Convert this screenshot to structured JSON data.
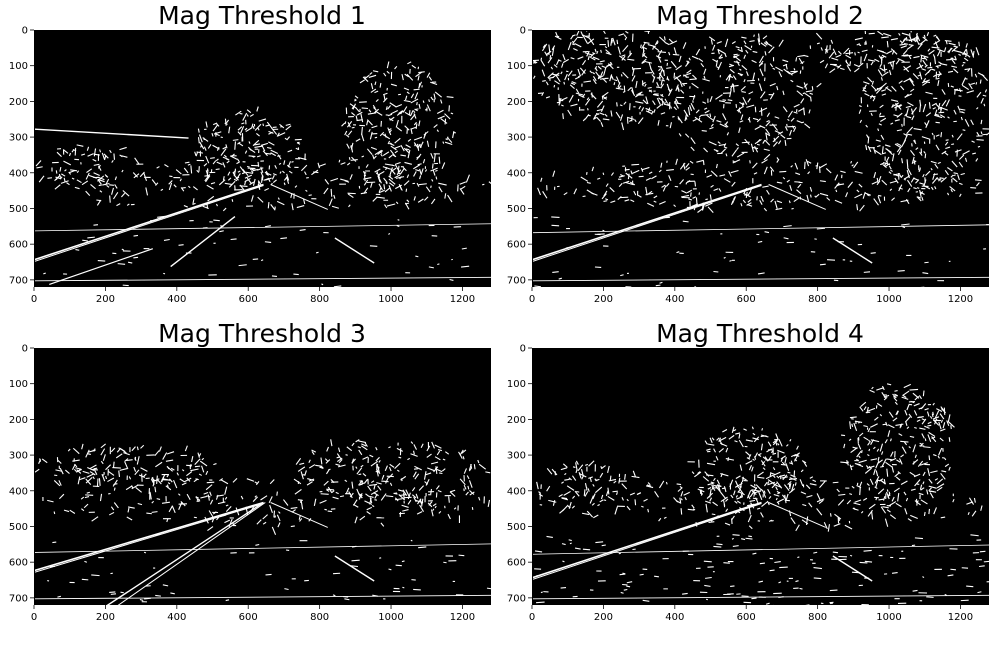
{
  "chart_data": [
    {
      "type": "heatmap",
      "title": "Mag Threshold 1",
      "xlim": [
        0,
        1280
      ],
      "ylim": [
        720,
        0
      ],
      "xticks": [
        0,
        200,
        400,
        600,
        800,
        1000,
        1200
      ],
      "yticks": [
        0,
        100,
        200,
        300,
        400,
        500,
        600,
        700
      ],
      "colormap": "binary (black background, white edges)"
    },
    {
      "type": "heatmap",
      "title": "Mag Threshold 2",
      "xlim": [
        0,
        1280
      ],
      "ylim": [
        720,
        0
      ],
      "xticks": [
        0,
        200,
        400,
        600,
        800,
        1000,
        1200
      ],
      "yticks": [
        0,
        100,
        200,
        300,
        400,
        500,
        600,
        700
      ],
      "colormap": "binary (black background, white edges)"
    },
    {
      "type": "heatmap",
      "title": "Mag Threshold 3",
      "xlim": [
        0,
        1280
      ],
      "ylim": [
        720,
        0
      ],
      "xticks": [
        0,
        200,
        400,
        600,
        800,
        1000,
        1200
      ],
      "yticks": [
        0,
        100,
        200,
        300,
        400,
        500,
        600,
        700
      ],
      "colormap": "binary (black background, white edges)"
    },
    {
      "type": "heatmap",
      "title": "Mag Threshold 4",
      "xlim": [
        0,
        1280
      ],
      "ylim": [
        720,
        0
      ],
      "xticks": [
        0,
        200,
        400,
        600,
        800,
        1000,
        1200
      ],
      "yticks": [
        0,
        100,
        200,
        300,
        400,
        500,
        600,
        700
      ],
      "colormap": "binary (black background, white edges)"
    }
  ],
  "colors": {
    "background": "#000000",
    "edges": "#ffffff",
    "page": "#ffffff"
  }
}
